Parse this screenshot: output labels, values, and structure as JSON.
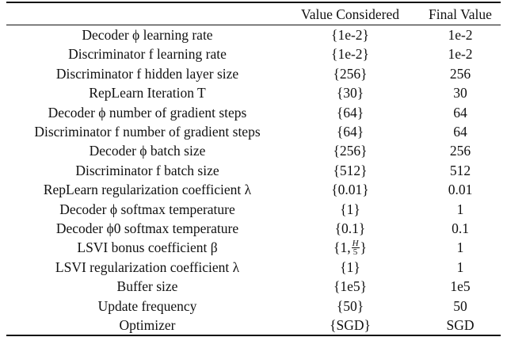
{
  "headers": {
    "param": "",
    "value_considered": "Value Considered",
    "final_value": "Final Value"
  },
  "rows": [
    {
      "param": "Decoder ϕ learning rate",
      "value": "{1e-2}",
      "final": "1e-2"
    },
    {
      "param": "Discriminator f learning rate",
      "value": "{1e-2}",
      "final": "1e-2"
    },
    {
      "param": "Discriminator f hidden layer size",
      "value": "{256}",
      "final": "256"
    },
    {
      "param": "RepLearn Iteration T",
      "value": "{30}",
      "final": "30"
    },
    {
      "param": "Decoder ϕ number of gradient steps",
      "value": "{64}",
      "final": "64"
    },
    {
      "param": "Discriminator f number of gradient steps",
      "value": "{64}",
      "final": "64"
    },
    {
      "param": "Decoder ϕ batch size",
      "value": "{256}",
      "final": "256"
    },
    {
      "param": "Discriminator f batch size",
      "value": "{512}",
      "final": "512"
    },
    {
      "param": "RepLearn regularization coefficient λ",
      "value": "{0.01}",
      "final": "0.01"
    },
    {
      "param": "Decoder ϕ softmax temperature",
      "value": "{1}",
      "final": "1"
    },
    {
      "param": "Decoder ϕ0 softmax temperature",
      "value": "{0.1}",
      "final": "0.1"
    },
    {
      "param": "LSVI bonus coefficient β",
      "value_prefix": "{1,",
      "value_frac_num": "H",
      "value_frac_den": "5",
      "value_suffix": "}",
      "final": "1"
    },
    {
      "param": "LSVI regularization coefficient λ",
      "value": "{1}",
      "final": "1"
    },
    {
      "param": "Buffer size",
      "value": "{1e5}",
      "final": "1e5"
    },
    {
      "param": "Update frequency",
      "value": "{50}",
      "final": "50"
    },
    {
      "param": "Optimizer",
      "value": "{SGD}",
      "final": "SGD"
    }
  ]
}
